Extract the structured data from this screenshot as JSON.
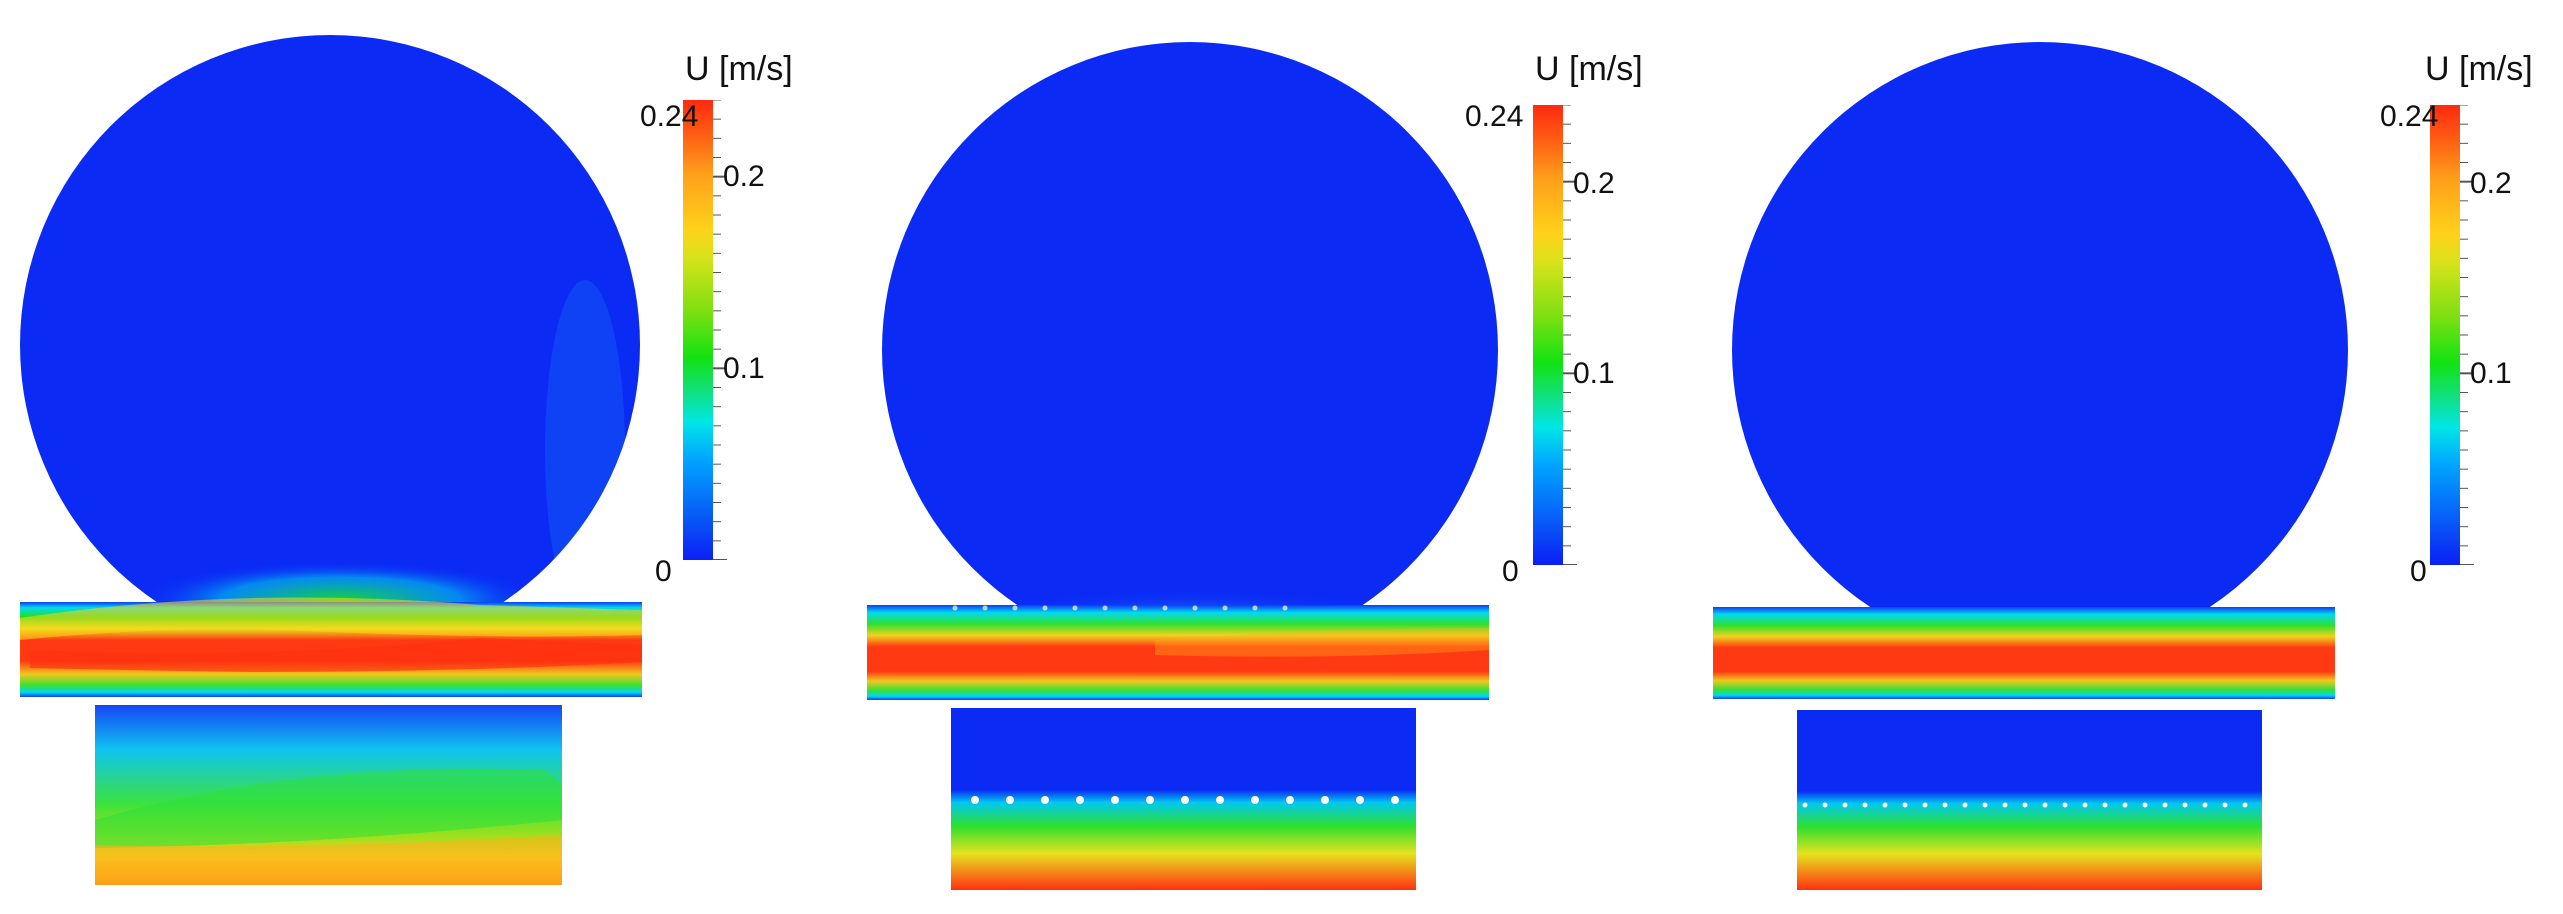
{
  "colorbar": {
    "title": "U [m/s]",
    "min_label": "0",
    "mid_label_1": "0.1",
    "mid_label_2": "0.2",
    "max_label": "0.24",
    "min": 0,
    "max": 0.24
  },
  "panels": [
    {
      "id": "panel-1",
      "colorbar_title": "U [m/s]",
      "labels": [
        "0.24",
        "0.2",
        "0.1",
        "0"
      ]
    },
    {
      "id": "panel-2",
      "colorbar_title": "U [m/s]",
      "labels": [
        "0.24",
        "0.2",
        "0.1",
        "0"
      ]
    },
    {
      "id": "panel-3",
      "colorbar_title": "U [m/s]",
      "labels": [
        "0.24",
        "0.2",
        "0.1",
        "0"
      ]
    }
  ],
  "colors": {
    "low": "#0b2bf5",
    "mid_low": "#00d5f0",
    "mid": "#16e016",
    "mid_high": "#f0e020",
    "high": "#ff2a10"
  }
}
